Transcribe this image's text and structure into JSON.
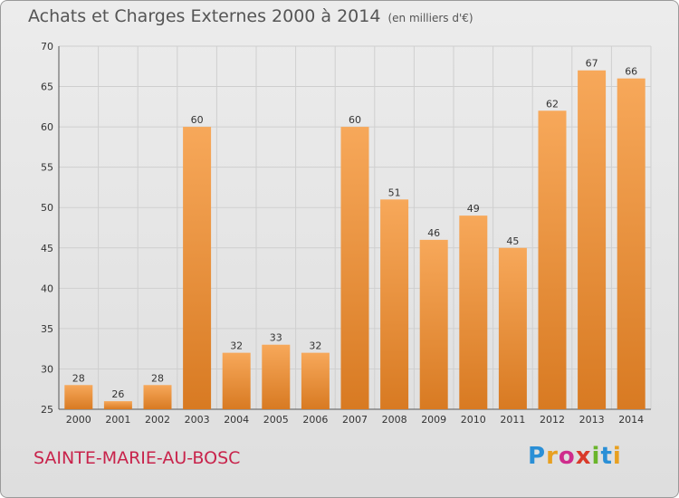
{
  "title": "Achats et Charges Externes 2000 à 2014",
  "unit": "(en milliers d'€)",
  "commune": "SAINTE-MARIE-AU-BOSC",
  "logo": {
    "letters": [
      "P",
      "r",
      "o",
      "x",
      "i",
      "t",
      "i"
    ],
    "colors": [
      "#2a8fd6",
      "#e8a020",
      "#cf2c8c",
      "#d93a2a",
      "#6ab52b",
      "#2a8fd6",
      "#e8a020"
    ]
  },
  "colors": {
    "bar_light": "#f7a85a",
    "bar_dark": "#d87a22",
    "grid": "#cfcfcf"
  },
  "chart_data": {
    "type": "bar",
    "categories": [
      "2000",
      "2001",
      "2002",
      "2003",
      "2004",
      "2005",
      "2006",
      "2007",
      "2008",
      "2009",
      "2010",
      "2011",
      "2012",
      "2013",
      "2014"
    ],
    "values": [
      28,
      26,
      28,
      60,
      32,
      33,
      32,
      60,
      51,
      46,
      49,
      45,
      62,
      67,
      66
    ],
    "ylim": [
      25,
      70
    ],
    "yticks": [
      25,
      30,
      35,
      40,
      45,
      50,
      55,
      60,
      65,
      70
    ],
    "grid": true,
    "data_labels": true
  }
}
